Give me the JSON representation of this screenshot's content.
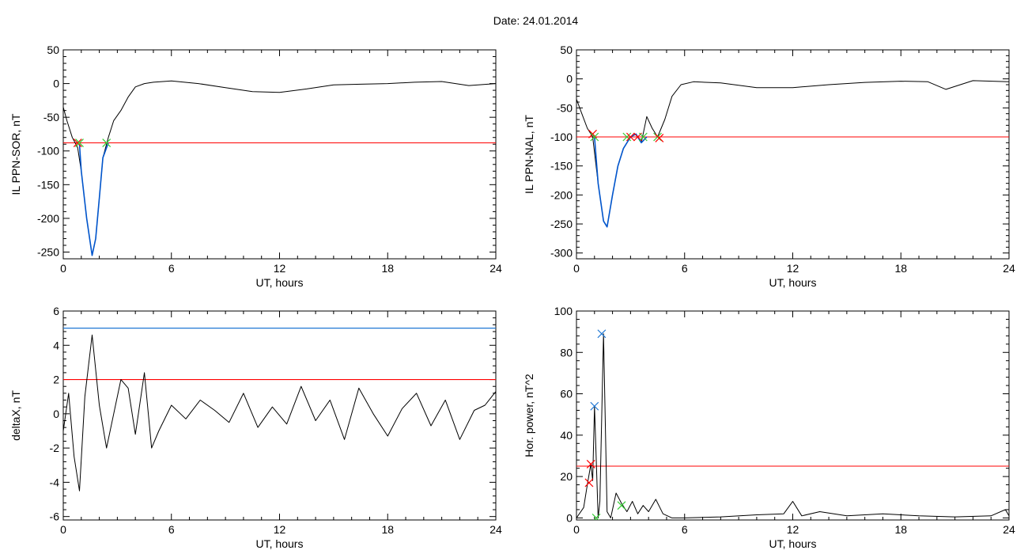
{
  "title": "Date:  24.01.2014",
  "colors": {
    "trace": "#000000",
    "threshold": "#ff0000",
    "highlight": "#0055cc",
    "blue_line": "#1f77d4",
    "green_mark": "#33cc33"
  },
  "chart_data": [
    {
      "type": "line",
      "xlabel": "UT, hours",
      "ylabel": "IL PPN-SOR, nT",
      "xlim": [
        0,
        24
      ],
      "ylim": [
        -260,
        50
      ],
      "xticks": [
        0,
        6,
        12,
        18,
        24
      ],
      "yticks": [
        50,
        0,
        -50,
        -100,
        -150,
        -200,
        -250
      ],
      "series": [
        {
          "color": "#000000",
          "x": [
            0,
            0.2,
            0.5,
            0.8,
            1.0,
            1.3,
            1.6,
            1.8,
            2.0,
            2.2,
            2.5,
            2.8,
            3.2,
            3.6,
            4.0,
            4.5,
            5.0,
            6.0,
            7.5,
            9.0,
            10.5,
            12.0,
            13.5,
            15.0,
            16.5,
            18.0,
            19.5,
            21.0,
            22.5,
            24.0
          ],
          "y": [
            -35,
            -55,
            -80,
            -95,
            -130,
            -200,
            -255,
            -230,
            -170,
            -110,
            -80,
            -55,
            -40,
            -20,
            -5,
            0,
            2,
            4,
            0,
            -6,
            -12,
            -13,
            -8,
            -2,
            -1,
            0,
            2,
            3,
            -3,
            0
          ]
        },
        {
          "color": "#0055cc",
          "x": [
            0.9,
            1.0,
            1.3,
            1.6,
            1.8,
            2.0,
            2.2,
            2.5
          ],
          "y": [
            -90,
            -130,
            -200,
            -255,
            -230,
            -170,
            -110,
            -88
          ]
        }
      ],
      "threshold": -88,
      "markers": [
        {
          "x": 0.8,
          "y": -88,
          "color": "#ff0000"
        },
        {
          "x": 0.9,
          "y": -88,
          "color": "#33cc33"
        },
        {
          "x": 2.4,
          "y": -88,
          "color": "#33cc33"
        }
      ]
    },
    {
      "type": "line",
      "xlabel": "UT, hours",
      "ylabel": "IL PPN-NAL, nT",
      "xlim": [
        0,
        24
      ],
      "ylim": [
        -310,
        50
      ],
      "xticks": [
        0,
        6,
        12,
        18,
        24
      ],
      "yticks": [
        50,
        0,
        -50,
        -100,
        -150,
        -200,
        -250,
        -300
      ],
      "series": [
        {
          "color": "#000000",
          "x": [
            0,
            0.3,
            0.6,
            0.9,
            1.2,
            1.5,
            1.7,
            2.0,
            2.3,
            2.6,
            3.0,
            3.3,
            3.6,
            3.9,
            4.2,
            4.5,
            4.9,
            5.3,
            5.8,
            6.5,
            8.0,
            10.0,
            12.0,
            14.0,
            16.0,
            18.0,
            19.5,
            20.5,
            22.0,
            24.0
          ],
          "y": [
            -35,
            -60,
            -85,
            -100,
            -180,
            -245,
            -255,
            -200,
            -150,
            -120,
            -100,
            -95,
            -110,
            -65,
            -85,
            -100,
            -70,
            -30,
            -10,
            -5,
            -7,
            -15,
            -15,
            -10,
            -6,
            -4,
            -5,
            -18,
            -3,
            -5
          ]
        },
        {
          "color": "#0055cc",
          "x": [
            1.0,
            1.2,
            1.5,
            1.7,
            2.0,
            2.3,
            2.6,
            3.0,
            3.3,
            3.6,
            3.9
          ],
          "y": [
            -100,
            -180,
            -245,
            -255,
            -200,
            -150,
            -120,
            -100,
            -95,
            -110,
            -100
          ]
        }
      ],
      "threshold": -100,
      "markers": [
        {
          "x": 0.9,
          "y": -95,
          "color": "#ff0000"
        },
        {
          "x": 1.0,
          "y": -100,
          "color": "#33cc33"
        },
        {
          "x": 2.8,
          "y": -100,
          "color": "#33cc33"
        },
        {
          "x": 3.0,
          "y": -100,
          "color": "#ff0000"
        },
        {
          "x": 3.4,
          "y": -100,
          "color": "#ff0000"
        },
        {
          "x": 3.7,
          "y": -100,
          "color": "#33cc33"
        },
        {
          "x": 4.5,
          "y": -100,
          "color": "#33cc33"
        },
        {
          "x": 4.6,
          "y": -102,
          "color": "#ff0000"
        }
      ]
    },
    {
      "type": "line",
      "xlabel": "UT, hours",
      "ylabel": "deltaX, nT",
      "xlim": [
        0,
        24
      ],
      "ylim": [
        -6.2,
        6
      ],
      "xticks": [
        0,
        6,
        12,
        18,
        24
      ],
      "yticks": [
        6,
        4,
        2,
        0,
        -2,
        -4,
        -6
      ],
      "series": [
        {
          "color": "#000000",
          "x": [
            0,
            0.3,
            0.6,
            0.9,
            1.2,
            1.6,
            2.0,
            2.4,
            2.8,
            3.2,
            3.6,
            4.0,
            4.5,
            4.9,
            5.3,
            6.0,
            6.8,
            7.6,
            8.4,
            9.2,
            10.0,
            10.8,
            11.6,
            12.4,
            13.2,
            14.0,
            14.8,
            15.6,
            16.4,
            17.2,
            18.0,
            18.8,
            19.6,
            20.4,
            21.2,
            22.0,
            22.8,
            23.4,
            24.0
          ],
          "y": [
            -1.0,
            1.2,
            -2.5,
            -4.5,
            1.0,
            4.6,
            0.5,
            -2.0,
            0.0,
            2.0,
            1.5,
            -1.2,
            2.4,
            -2.0,
            -1.0,
            0.5,
            -0.3,
            0.8,
            0.2,
            -0.5,
            1.2,
            -0.8,
            0.4,
            -0.6,
            1.6,
            -0.4,
            0.8,
            -1.5,
            1.5,
            0.0,
            -1.3,
            0.3,
            1.2,
            -0.7,
            0.8,
            -1.5,
            0.2,
            0.5,
            1.3
          ]
        }
      ],
      "hlines": [
        {
          "y": 5.0,
          "color": "#1f77d4"
        },
        {
          "y": 2.0,
          "color": "#ff0000"
        }
      ]
    },
    {
      "type": "line",
      "xlabel": "UT, hours",
      "ylabel": "Hor. power, nT^2",
      "xlim": [
        0,
        24
      ],
      "ylim": [
        -1,
        100
      ],
      "xticks": [
        0,
        6,
        12,
        18,
        24
      ],
      "yticks": [
        100,
        80,
        60,
        40,
        20,
        0
      ],
      "series": [
        {
          "color": "#000000",
          "x": [
            0,
            0.4,
            0.6,
            0.8,
            0.9,
            1.0,
            1.2,
            1.3,
            1.5,
            1.7,
            1.9,
            2.2,
            2.5,
            2.8,
            3.1,
            3.4,
            3.7,
            4.0,
            4.4,
            4.8,
            5.3,
            6.0,
            8.0,
            10.0,
            11.5,
            12.0,
            12.5,
            13.5,
            15.0,
            17.0,
            19.0,
            21.0,
            23.0,
            23.8,
            24.0
          ],
          "y": [
            0,
            5,
            16,
            26,
            18,
            54,
            0,
            8,
            89,
            3,
            0,
            12,
            7,
            3,
            8,
            2,
            6,
            3,
            9,
            2,
            0,
            0,
            0.5,
            1.5,
            2,
            8,
            1,
            3,
            1,
            2,
            1,
            0.5,
            1,
            4,
            1
          ]
        }
      ],
      "threshold": 25,
      "markers": [
        {
          "x": 0.7,
          "y": 17,
          "color": "#ff0000"
        },
        {
          "x": 0.8,
          "y": 26,
          "color": "#ff0000"
        },
        {
          "x": 1.0,
          "y": 54,
          "color": "#1f77d4"
        },
        {
          "x": 1.4,
          "y": 89,
          "color": "#1f77d4"
        },
        {
          "x": 1.1,
          "y": 0,
          "color": "#33cc33"
        },
        {
          "x": 2.5,
          "y": 6,
          "color": "#33cc33"
        }
      ]
    }
  ]
}
